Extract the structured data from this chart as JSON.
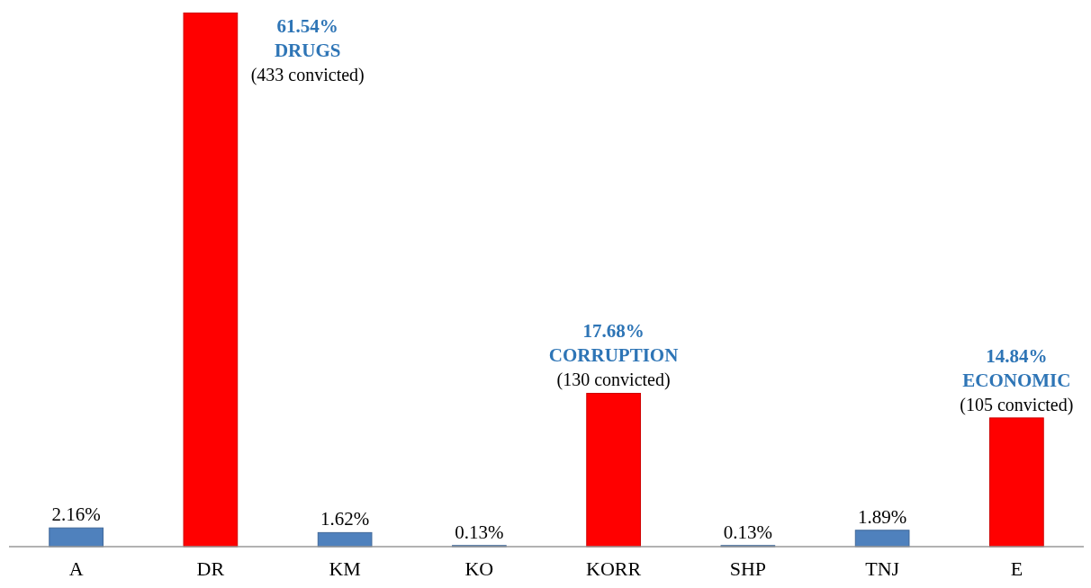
{
  "chart_data": {
    "type": "bar",
    "categories": [
      "A",
      "DR",
      "KM",
      "KO",
      "KORR",
      "SHP",
      "TNJ",
      "E"
    ],
    "values": [
      2.16,
      61.54,
      1.62,
      0.13,
      17.68,
      0.13,
      1.89,
      14.84
    ],
    "colors": [
      "#4f81bd",
      "#ff0000",
      "#4f81bd",
      "#4f81bd",
      "#ff0000",
      "#4f81bd",
      "#4f81bd",
      "#ff0000"
    ],
    "value_labels": [
      "2.16%",
      null,
      "1.62%",
      "0.13%",
      "17.68%",
      "0.13%",
      "1.89%",
      "14.84%"
    ],
    "ylim": [
      0,
      62
    ],
    "tick_labels": "x",
    "annotations": [
      "61.54%",
      "DRUGS",
      "(433 convicted)",
      {
        "text": "CORRUPTION",
        "x": "KORR",
        "y": 17.68
      },
      {
        "text": "(130 convicted)",
        "x": "KORR",
        "y": 17.68
      },
      {
        "text": "ECONOMIC",
        "x": "E",
        "y": 14.84
      },
      {
        "text": "(105 convicted)",
        "x": "E",
        "y": 14.84
      }
    ]
  }
}
